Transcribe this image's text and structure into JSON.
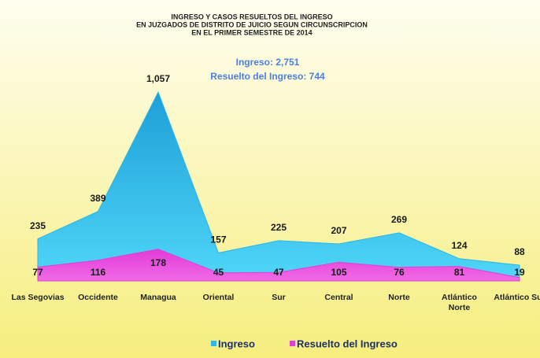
{
  "chart_data": {
    "type": "area",
    "title": [
      "INGRESO Y CASOS RESUELTOS DEL INGRESO",
      "EN JUZGADOS DE DISTRITO DE JUICIO SEGUN CIRCUNSCRIPCION",
      "EN EL PRIMER SEMESTRE DE 2014"
    ],
    "annotations": [
      "Ingreso:  2,751",
      "Resuelto del Ingreso: 744"
    ],
    "categories": [
      "Las Segovias",
      "Occidente",
      "Managua",
      "Oriental",
      "Sur",
      "Central",
      "Norte",
      "Atlántico Norte",
      "Atlántico Sur"
    ],
    "series": [
      {
        "name": "Ingreso",
        "color": "#29b6ea",
        "values": [
          235,
          389,
          1057,
          157,
          225,
          207,
          269,
          124,
          88
        ],
        "value_labels": [
          "235",
          "389",
          "1,057",
          "157",
          "225",
          "207",
          "269",
          "124",
          "88"
        ]
      },
      {
        "name": "Resuelto del Ingreso",
        "color": "#e03fd6",
        "values": [
          77,
          116,
          178,
          45,
          47,
          105,
          76,
          81,
          19
        ]
      }
    ],
    "ylim": [
      0,
      1100
    ],
    "legend": "bottom"
  }
}
